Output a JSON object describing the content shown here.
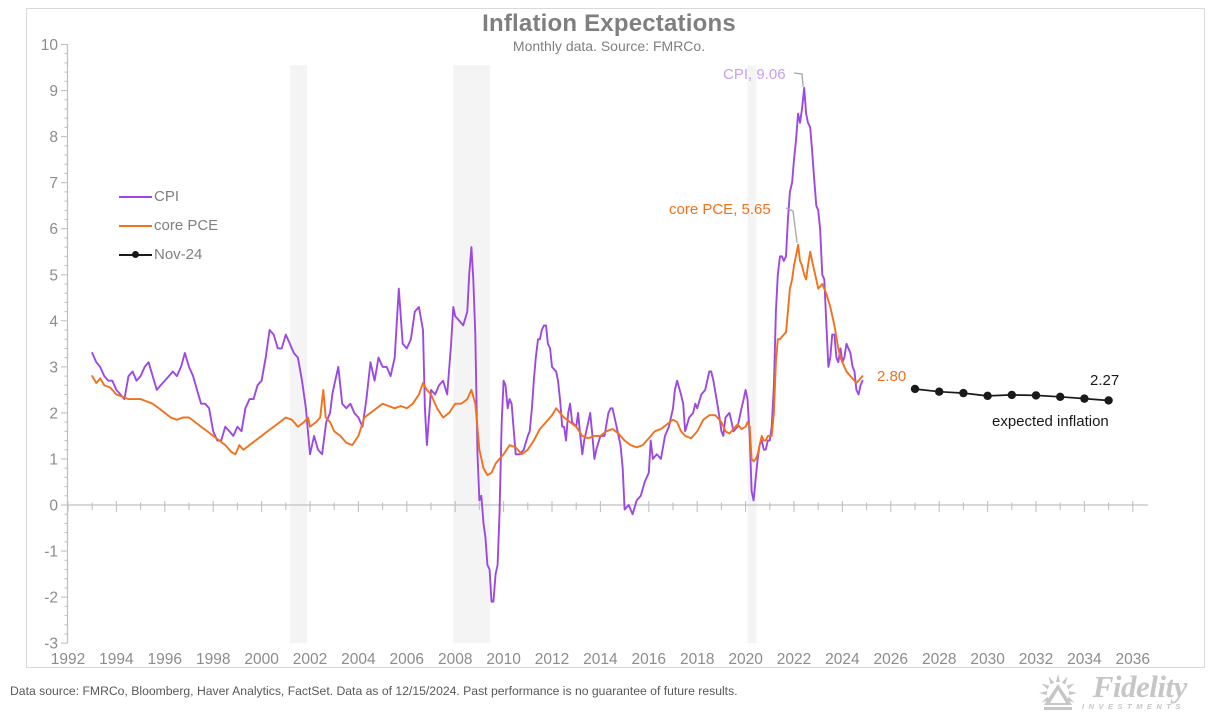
{
  "footer": {
    "disclaimer": "Data source: FMRCo, Bloomberg, Haver Analytics, FactSet. Data as of 12/15/2024. Past performance is no guarantee of future results."
  },
  "logo": {
    "brand": "Fidelity",
    "sub": "INVESTMENTS"
  },
  "chart_data": {
    "type": "line",
    "title": "Inflation Expectations",
    "subtitle": "Monthly data. Source: FMRCo.",
    "xlabel": "",
    "ylabel": "",
    "xlim": [
      1992,
      2036
    ],
    "ylim": [
      -3,
      10
    ],
    "x_tick_step": 2,
    "y_tick_step": 1,
    "y_minor_step": 0.2,
    "grid": false,
    "legend_position": "top-left",
    "colors": {
      "cpi": "#9c49e3",
      "cpi_label": "#c79fec",
      "pce": "#f1711d",
      "expected": "#1a1a1a",
      "axis": "#c0c0c0",
      "tick_label": "#8c8c8c",
      "band": "#f4f4f4",
      "callout": "#a6a6a6"
    },
    "recession_bands": [
      [
        2001.17,
        2001.88
      ],
      [
        2007.92,
        2009.44
      ],
      [
        2020.08,
        2020.45
      ]
    ],
    "annotations": [
      {
        "id": "cpi-peak",
        "text": "CPI, 9.06",
        "color": "#c79fec",
        "target": [
          2022.42,
          9.06
        ]
      },
      {
        "id": "pce-peak",
        "text": "core PCE, 5.65",
        "color": "#f1711d",
        "target": [
          2022.17,
          5.65
        ]
      },
      {
        "id": "pce-last",
        "text": "2.80",
        "color": "#f1711d",
        "target": [
          2024.83,
          2.8
        ]
      },
      {
        "id": "expected-last",
        "text": "2.27",
        "color": "#1a1a1a",
        "target": [
          2035,
          2.27
        ]
      },
      {
        "id": "expected-label",
        "text": "expected inflation",
        "color": "#1a1a1a",
        "target": [
          2033,
          2.0
        ]
      }
    ],
    "series": [
      {
        "name": "CPI",
        "color": "#9c49e3",
        "marker": "none",
        "x": [
          1993.0,
          1993.17,
          1993.33,
          1993.5,
          1993.67,
          1993.83,
          1994.0,
          1994.17,
          1994.33,
          1994.5,
          1994.67,
          1994.83,
          1995.0,
          1995.17,
          1995.33,
          1995.5,
          1995.67,
          1995.83,
          1996.0,
          1996.17,
          1996.33,
          1996.5,
          1996.67,
          1996.83,
          1997.0,
          1997.17,
          1997.33,
          1997.5,
          1997.67,
          1997.83,
          1998.0,
          1998.17,
          1998.33,
          1998.5,
          1998.67,
          1998.83,
          1999.0,
          1999.17,
          1999.33,
          1999.5,
          1999.67,
          1999.83,
          2000.0,
          2000.17,
          2000.33,
          2000.5,
          2000.67,
          2000.83,
          2001.0,
          2001.17,
          2001.33,
          2001.5,
          2001.67,
          2001.83,
          2002.0,
          2002.17,
          2002.33,
          2002.5,
          2002.67,
          2002.83,
          2002.92,
          2003.0,
          2003.17,
          2003.33,
          2003.5,
          2003.67,
          2003.83,
          2004.0,
          2004.17,
          2004.33,
          2004.5,
          2004.67,
          2004.83,
          2005.0,
          2005.17,
          2005.33,
          2005.5,
          2005.67,
          2005.83,
          2006.0,
          2006.17,
          2006.33,
          2006.5,
          2006.67,
          2006.75,
          2006.83,
          2007.0,
          2007.17,
          2007.33,
          2007.5,
          2007.67,
          2007.83,
          2007.92,
          2008.0,
          2008.17,
          2008.33,
          2008.5,
          2008.58,
          2008.67,
          2008.75,
          2008.83,
          2008.92,
          2009.0,
          2009.08,
          2009.17,
          2009.25,
          2009.33,
          2009.42,
          2009.5,
          2009.58,
          2009.67,
          2009.75,
          2009.83,
          2009.92,
          2010.0,
          2010.08,
          2010.17,
          2010.25,
          2010.33,
          2010.5,
          2010.67,
          2010.83,
          2011.0,
          2011.08,
          2011.17,
          2011.25,
          2011.33,
          2011.42,
          2011.5,
          2011.58,
          2011.67,
          2011.75,
          2011.83,
          2011.92,
          2012.0,
          2012.17,
          2012.25,
          2012.33,
          2012.42,
          2012.5,
          2012.58,
          2012.67,
          2012.75,
          2012.83,
          2013.0,
          2013.08,
          2013.17,
          2013.25,
          2013.33,
          2013.5,
          2013.58,
          2013.67,
          2013.75,
          2013.83,
          2014.0,
          2014.17,
          2014.33,
          2014.42,
          2014.5,
          2014.67,
          2014.83,
          2014.92,
          2015.0,
          2015.17,
          2015.33,
          2015.5,
          2015.67,
          2015.83,
          2016.0,
          2016.08,
          2016.17,
          2016.33,
          2016.5,
          2016.67,
          2016.83,
          2017.0,
          2017.08,
          2017.17,
          2017.33,
          2017.42,
          2017.5,
          2017.67,
          2017.83,
          2017.92,
          2018.0,
          2018.17,
          2018.33,
          2018.5,
          2018.58,
          2018.67,
          2018.83,
          2018.92,
          2019.0,
          2019.08,
          2019.17,
          2019.33,
          2019.42,
          2019.5,
          2019.67,
          2019.83,
          2019.92,
          2020.0,
          2020.08,
          2020.17,
          2020.25,
          2020.33,
          2020.42,
          2020.5,
          2020.58,
          2020.67,
          2020.75,
          2020.83,
          2020.92,
          2021.0,
          2021.08,
          2021.17,
          2021.25,
          2021.33,
          2021.42,
          2021.5,
          2021.58,
          2021.67,
          2021.75,
          2021.83,
          2021.92,
          2022.0,
          2022.08,
          2022.17,
          2022.25,
          2022.33,
          2022.42,
          2022.5,
          2022.58,
          2022.67,
          2022.75,
          2022.83,
          2022.92,
          2023.0,
          2023.08,
          2023.17,
          2023.25,
          2023.33,
          2023.42,
          2023.5,
          2023.58,
          2023.67,
          2023.75,
          2023.83,
          2023.92,
          2024.0,
          2024.08,
          2024.17,
          2024.25,
          2024.33,
          2024.42,
          2024.5,
          2024.58,
          2024.67,
          2024.75,
          2024.83
        ],
        "values": [
          3.3,
          3.1,
          3.0,
          2.8,
          2.7,
          2.7,
          2.5,
          2.4,
          2.3,
          2.8,
          2.9,
          2.7,
          2.8,
          3.0,
          3.1,
          2.8,
          2.5,
          2.6,
          2.7,
          2.8,
          2.9,
          2.8,
          3.0,
          3.3,
          3.0,
          2.8,
          2.5,
          2.2,
          2.2,
          2.1,
          1.6,
          1.4,
          1.4,
          1.7,
          1.6,
          1.5,
          1.7,
          1.6,
          2.1,
          2.3,
          2.3,
          2.6,
          2.7,
          3.2,
          3.8,
          3.7,
          3.4,
          3.4,
          3.7,
          3.5,
          3.3,
          3.2,
          2.7,
          2.1,
          1.1,
          1.5,
          1.2,
          1.1,
          1.8,
          2.0,
          2.4,
          2.6,
          3.0,
          2.2,
          2.1,
          2.2,
          2.0,
          1.9,
          1.7,
          2.3,
          3.1,
          2.7,
          3.2,
          3.0,
          3.0,
          2.8,
          3.2,
          4.7,
          3.5,
          3.4,
          3.6,
          4.2,
          4.3,
          3.8,
          2.1,
          1.3,
          2.5,
          2.4,
          2.6,
          2.7,
          2.4,
          3.5,
          4.3,
          4.1,
          4.0,
          3.9,
          4.2,
          5.0,
          5.6,
          4.9,
          3.7,
          1.1,
          0.1,
          0.2,
          -0.4,
          -0.7,
          -1.3,
          -1.4,
          -2.1,
          -2.1,
          -1.5,
          -1.3,
          -0.2,
          1.8,
          2.7,
          2.6,
          2.1,
          2.3,
          2.2,
          1.1,
          1.1,
          1.2,
          1.5,
          1.6,
          2.1,
          2.7,
          3.2,
          3.6,
          3.6,
          3.8,
          3.9,
          3.9,
          3.5,
          3.4,
          3.0,
          2.9,
          2.7,
          2.3,
          1.7,
          1.7,
          1.4,
          2.0,
          2.2,
          1.8,
          1.7,
          2.0,
          1.5,
          1.1,
          1.4,
          1.8,
          2.0,
          1.5,
          1.0,
          1.2,
          1.5,
          1.5,
          2.0,
          2.1,
          2.1,
          1.7,
          1.3,
          0.8,
          -0.1,
          0.0,
          -0.2,
          0.1,
          0.2,
          0.5,
          0.7,
          1.4,
          1.0,
          1.1,
          1.0,
          1.5,
          1.7,
          2.1,
          2.5,
          2.7,
          2.4,
          2.2,
          1.6,
          1.9,
          2.0,
          2.2,
          2.1,
          2.4,
          2.5,
          2.9,
          2.9,
          2.7,
          2.2,
          1.9,
          1.6,
          1.5,
          1.9,
          2.0,
          1.8,
          1.6,
          1.7,
          2.1,
          2.3,
          2.5,
          2.3,
          1.5,
          0.3,
          0.1,
          0.6,
          1.0,
          1.3,
          1.4,
          1.2,
          1.2,
          1.4,
          1.4,
          1.7,
          2.6,
          4.2,
          5.0,
          5.4,
          5.4,
          5.3,
          5.4,
          6.2,
          6.8,
          7.0,
          7.5,
          7.9,
          8.5,
          8.3,
          8.6,
          9.06,
          8.5,
          8.3,
          8.2,
          7.7,
          7.1,
          6.5,
          6.4,
          6.0,
          5.0,
          4.9,
          4.0,
          3.0,
          3.2,
          3.7,
          3.7,
          3.2,
          3.1,
          3.4,
          3.1,
          3.2,
          3.5,
          3.4,
          3.3,
          3.0,
          2.9,
          2.5,
          2.4,
          2.6,
          2.7
        ]
      },
      {
        "name": "core PCE",
        "color": "#f1711d",
        "marker": "none",
        "x": [
          1993.0,
          1993.17,
          1993.33,
          1993.5,
          1993.75,
          1994.0,
          1994.25,
          1994.5,
          1994.75,
          1995.0,
          1995.25,
          1995.5,
          1995.75,
          1996.0,
          1996.25,
          1996.5,
          1996.75,
          1997.0,
          1997.25,
          1997.5,
          1997.75,
          1998.0,
          1998.25,
          1998.5,
          1998.75,
          1998.92,
          1999.08,
          1999.25,
          1999.5,
          1999.75,
          2000.0,
          2000.25,
          2000.5,
          2000.75,
          2001.0,
          2001.25,
          2001.5,
          2001.75,
          2001.92,
          2002.0,
          2002.25,
          2002.42,
          2002.55,
          2002.65,
          2002.83,
          2003.0,
          2003.25,
          2003.5,
          2003.75,
          2004.0,
          2004.25,
          2004.5,
          2004.75,
          2005.0,
          2005.25,
          2005.5,
          2005.75,
          2006.0,
          2006.25,
          2006.5,
          2006.67,
          2006.83,
          2007.0,
          2007.25,
          2007.5,
          2007.75,
          2008.0,
          2008.25,
          2008.5,
          2008.67,
          2008.83,
          2009.0,
          2009.17,
          2009.33,
          2009.5,
          2009.67,
          2009.83,
          2010.0,
          2010.25,
          2010.5,
          2010.75,
          2011.0,
          2011.25,
          2011.5,
          2011.75,
          2012.0,
          2012.17,
          2012.33,
          2012.5,
          2012.75,
          2013.0,
          2013.25,
          2013.5,
          2013.75,
          2014.0,
          2014.25,
          2014.5,
          2014.75,
          2015.0,
          2015.25,
          2015.5,
          2015.75,
          2016.0,
          2016.25,
          2016.5,
          2016.75,
          2017.0,
          2017.17,
          2017.33,
          2017.5,
          2017.75,
          2017.92,
          2018.0,
          2018.25,
          2018.5,
          2018.75,
          2019.0,
          2019.17,
          2019.33,
          2019.5,
          2019.67,
          2019.83,
          2020.0,
          2020.08,
          2020.17,
          2020.25,
          2020.33,
          2020.42,
          2020.5,
          2020.58,
          2020.67,
          2020.75,
          2020.83,
          2020.92,
          2021.0,
          2021.08,
          2021.17,
          2021.25,
          2021.33,
          2021.42,
          2021.5,
          2021.58,
          2021.67,
          2021.75,
          2021.83,
          2021.92,
          2022.0,
          2022.08,
          2022.17,
          2022.25,
          2022.33,
          2022.42,
          2022.5,
          2022.58,
          2022.67,
          2022.75,
          2022.83,
          2022.92,
          2023.0,
          2023.17,
          2023.33,
          2023.5,
          2023.67,
          2023.83,
          2023.92,
          2024.0,
          2024.17,
          2024.33,
          2024.5,
          2024.58,
          2024.67,
          2024.75,
          2024.83
        ],
        "values": [
          2.8,
          2.65,
          2.75,
          2.6,
          2.55,
          2.4,
          2.35,
          2.3,
          2.3,
          2.3,
          2.25,
          2.2,
          2.1,
          2.0,
          1.9,
          1.85,
          1.9,
          1.9,
          1.8,
          1.7,
          1.6,
          1.5,
          1.4,
          1.3,
          1.15,
          1.1,
          1.3,
          1.2,
          1.3,
          1.4,
          1.5,
          1.6,
          1.7,
          1.8,
          1.9,
          1.85,
          1.7,
          1.8,
          1.9,
          1.7,
          1.8,
          1.9,
          2.5,
          1.9,
          1.8,
          1.6,
          1.5,
          1.35,
          1.3,
          1.5,
          1.9,
          2.0,
          2.1,
          2.2,
          2.15,
          2.1,
          2.15,
          2.1,
          2.2,
          2.4,
          2.65,
          2.5,
          2.4,
          2.1,
          1.9,
          2.0,
          2.2,
          2.2,
          2.3,
          2.5,
          2.2,
          1.2,
          0.8,
          0.65,
          0.7,
          0.9,
          1.0,
          1.1,
          1.3,
          1.25,
          1.1,
          1.2,
          1.4,
          1.65,
          1.8,
          1.95,
          2.1,
          2.0,
          1.9,
          1.8,
          1.7,
          1.5,
          1.45,
          1.5,
          1.5,
          1.6,
          1.65,
          1.55,
          1.4,
          1.3,
          1.25,
          1.3,
          1.45,
          1.6,
          1.65,
          1.75,
          1.85,
          1.8,
          1.6,
          1.5,
          1.45,
          1.55,
          1.6,
          1.85,
          1.95,
          1.95,
          1.8,
          1.6,
          1.55,
          1.65,
          1.75,
          1.65,
          1.7,
          1.8,
          1.7,
          1.0,
          0.95,
          1.0,
          1.1,
          1.3,
          1.5,
          1.4,
          1.4,
          1.5,
          1.5,
          1.5,
          2.0,
          3.1,
          3.6,
          3.6,
          3.65,
          3.7,
          3.75,
          4.2,
          4.7,
          4.9,
          5.2,
          5.4,
          5.65,
          5.3,
          5.2,
          5.0,
          4.9,
          5.2,
          5.5,
          5.3,
          5.1,
          4.9,
          4.7,
          4.8,
          4.6,
          4.3,
          3.9,
          3.4,
          3.2,
          3.1,
          2.9,
          2.8,
          2.7,
          2.65,
          2.7,
          2.75,
          2.8
        ]
      },
      {
        "name": "Nov-24",
        "color": "#1a1a1a",
        "marker": "dot",
        "x": [
          2027,
          2028,
          2029,
          2030,
          2031,
          2032,
          2033,
          2034,
          2035
        ],
        "values": [
          2.52,
          2.46,
          2.43,
          2.37,
          2.39,
          2.38,
          2.35,
          2.31,
          2.27
        ]
      }
    ]
  }
}
